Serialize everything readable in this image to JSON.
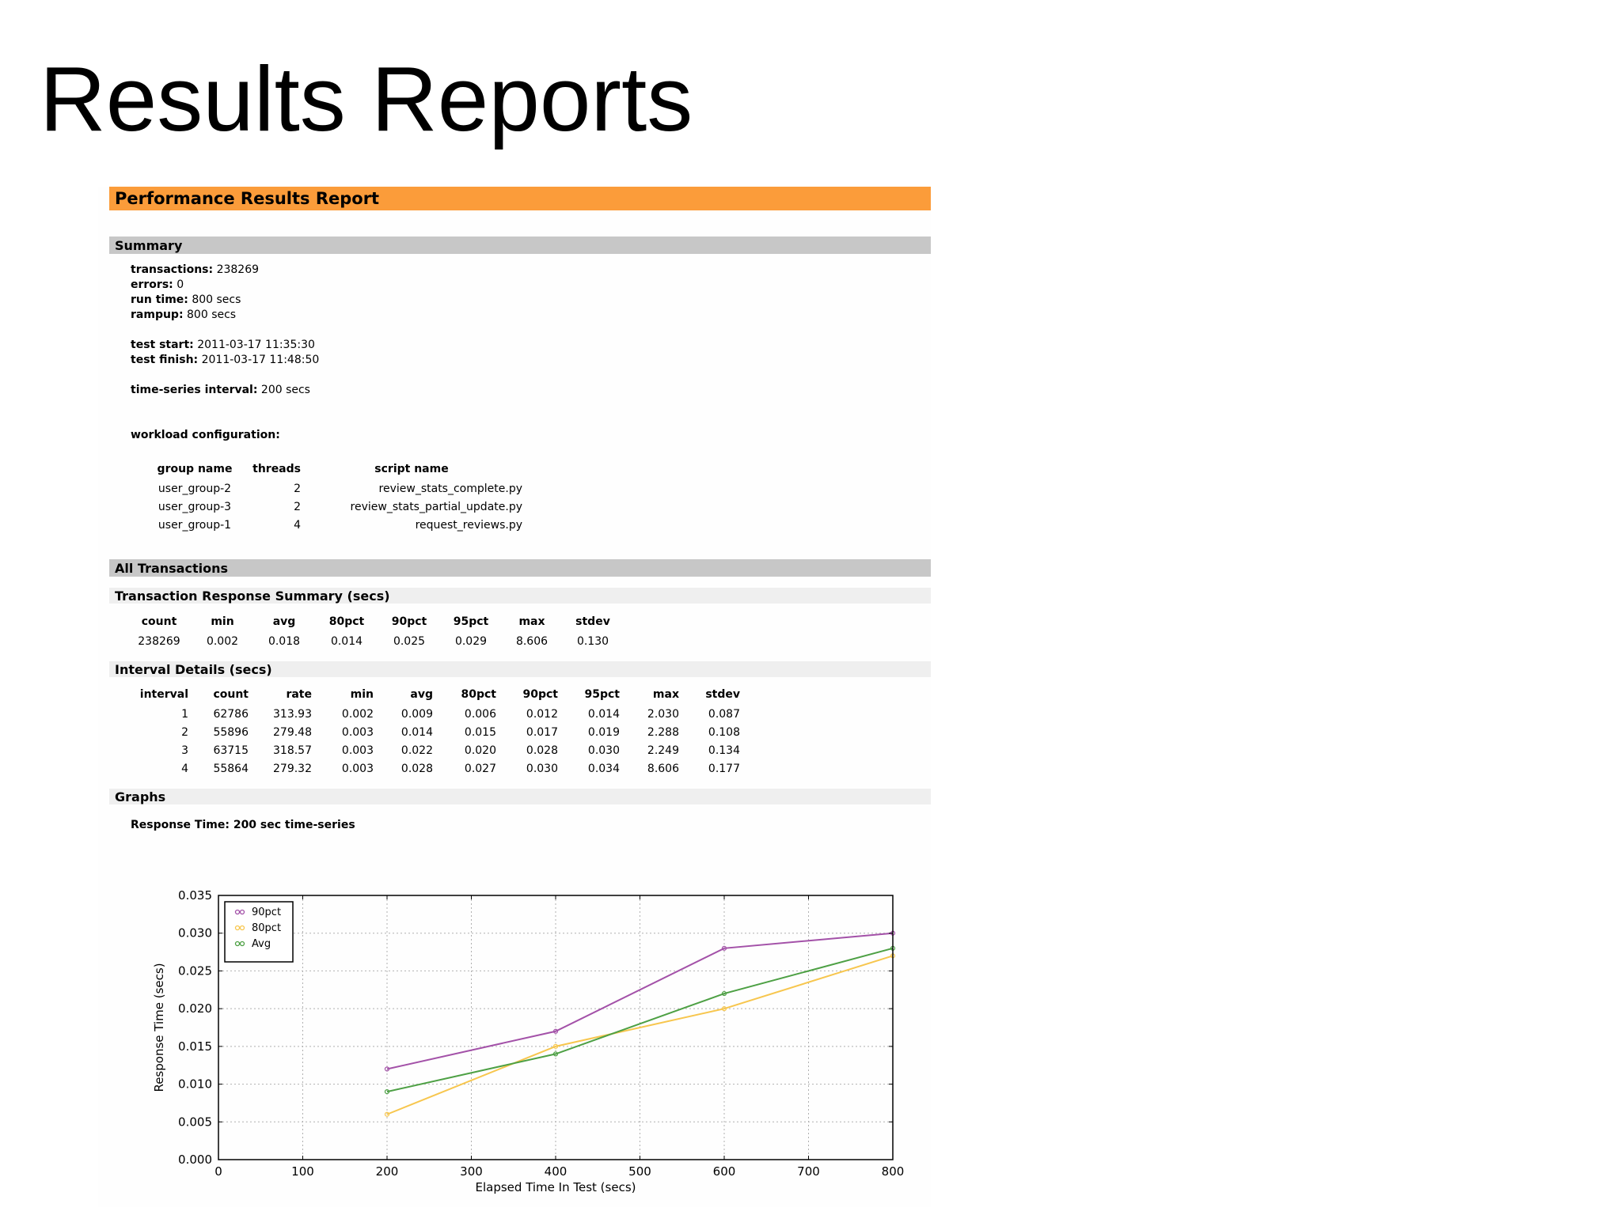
{
  "slide_title": "Results Reports",
  "report": {
    "title": "Performance Results Report",
    "summary": {
      "heading": "Summary",
      "transactions_label": "transactions:",
      "transactions": "238269",
      "errors_label": "errors:",
      "errors": "0",
      "run_time_label": "run time:",
      "run_time": "800 secs",
      "rampup_label": "rampup:",
      "rampup": "800 secs",
      "test_start_label": "test start:",
      "test_start": "2011-03-17 11:35:30",
      "test_finish_label": "test finish:",
      "test_finish": "2011-03-17 11:48:50",
      "interval_label": "time-series interval:",
      "interval": "200 secs",
      "workload_heading": "workload configuration:",
      "workload": {
        "headers": [
          "group name",
          "threads",
          "script name"
        ],
        "rows": [
          [
            "user_group-2",
            "2",
            "review_stats_complete.py"
          ],
          [
            "user_group-3",
            "2",
            "review_stats_partial_update.py"
          ],
          [
            "user_group-1",
            "4",
            "request_reviews.py"
          ]
        ]
      }
    },
    "all_transactions": {
      "heading": "All Transactions",
      "response_summary": {
        "heading": "Transaction Response Summary (secs)",
        "headers": [
          "count",
          "min",
          "avg",
          "80pct",
          "90pct",
          "95pct",
          "max",
          "stdev"
        ],
        "row": [
          "238269",
          "0.002",
          "0.018",
          "0.014",
          "0.025",
          "0.029",
          "8.606",
          "0.130"
        ]
      },
      "interval_details": {
        "heading": "Interval Details (secs)",
        "headers": [
          "interval",
          "count",
          "rate",
          "min",
          "avg",
          "80pct",
          "90pct",
          "95pct",
          "max",
          "stdev"
        ],
        "rows": [
          [
            "1",
            "62786",
            "313.93",
            "0.002",
            "0.009",
            "0.006",
            "0.012",
            "0.014",
            "2.030",
            "0.087"
          ],
          [
            "2",
            "55896",
            "279.48",
            "0.003",
            "0.014",
            "0.015",
            "0.017",
            "0.019",
            "2.288",
            "0.108"
          ],
          [
            "3",
            "63715",
            "318.57",
            "0.003",
            "0.022",
            "0.020",
            "0.028",
            "0.030",
            "2.249",
            "0.134"
          ],
          [
            "4",
            "55864",
            "279.32",
            "0.003",
            "0.028",
            "0.027",
            "0.030",
            "0.034",
            "8.606",
            "0.177"
          ]
        ]
      }
    },
    "graphs": {
      "heading": "Graphs",
      "chart_title": "Response Time: 200 sec time-series"
    }
  },
  "chart_data": {
    "type": "line",
    "title": "Response Time: 200 sec time-series",
    "xlabel": "Elapsed Time In Test (secs)",
    "ylabel": "Response Time (secs)",
    "xlim": [
      0,
      800
    ],
    "ylim": [
      0,
      0.035
    ],
    "xticks": [
      "0",
      "100",
      "200",
      "300",
      "400",
      "500",
      "600",
      "700",
      "800"
    ],
    "yticks": [
      "0.000",
      "0.005",
      "0.010",
      "0.015",
      "0.020",
      "0.025",
      "0.030",
      "0.035"
    ],
    "grid": true,
    "legend_position": "top-left",
    "series": [
      {
        "name": "90pct",
        "color": "#a351a8",
        "x": [
          200,
          400,
          600,
          800
        ],
        "y": [
          0.012,
          0.017,
          0.028,
          0.03
        ]
      },
      {
        "name": "80pct",
        "color": "#f7c64e",
        "x": [
          200,
          400,
          600,
          800
        ],
        "y": [
          0.006,
          0.015,
          0.02,
          0.027
        ]
      },
      {
        "name": "Avg",
        "color": "#4da044",
        "x": [
          200,
          400,
          600,
          800
        ],
        "y": [
          0.009,
          0.014,
          0.022,
          0.028
        ]
      }
    ]
  }
}
